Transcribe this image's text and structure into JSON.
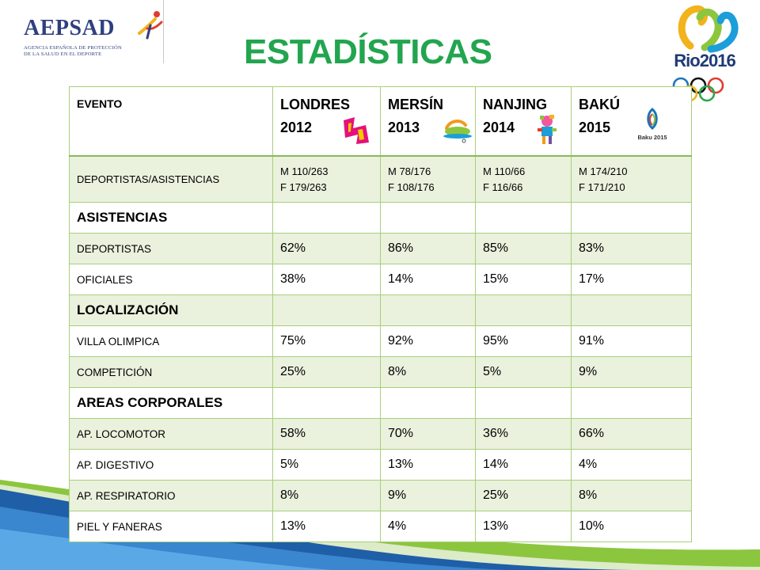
{
  "header": {
    "title": "ESTADÍSTICAS",
    "aepsad_logo_text": "AEPSAD",
    "aepsad_logo_sub": [
      "AGENCIA ESPAÑOLA DE PROTECCIÓN",
      "DE LA SALUD EN EL DEPORTE"
    ],
    "rio_logo_text": "Rio2016"
  },
  "table": {
    "header": {
      "evento": "EVENTO",
      "events": [
        {
          "name": "LONDRES",
          "year": "2012",
          "emblem": "london-2012-emblem"
        },
        {
          "name": "MERSÍN",
          "year": "2013",
          "emblem": "mersin-2013-emblem"
        },
        {
          "name": "NANJING",
          "year": "2014",
          "emblem": "nanjing-2014-mascot"
        },
        {
          "name": "BAKÚ",
          "year": "2015",
          "emblem": "baku-2015-emblem",
          "emblem_text": "Baku 2015"
        }
      ]
    },
    "deportistas_row": {
      "label": "DEPORTISTAS/ASISTENCIAS",
      "values": [
        {
          "m": "M 110/263",
          "f": "F 179/263"
        },
        {
          "m": "M 78/176",
          "f": "F 108/176"
        },
        {
          "m": "M 110/66",
          "f": "F 116/66"
        },
        {
          "m": "M 174/210",
          "f": "F 171/210"
        }
      ]
    },
    "sections": [
      {
        "title": "ASISTENCIAS",
        "rows": [
          {
            "label": "DEPORTISTAS",
            "values": [
              "62%",
              "86%",
              "85%",
              "83%"
            ]
          },
          {
            "label": "OFICIALES",
            "values": [
              "38%",
              "14%",
              "15%",
              "17%"
            ]
          }
        ]
      },
      {
        "title": "LOCALIZACIÓN",
        "rows": [
          {
            "label": "VILLA OLIMPICA",
            "values": [
              "75%",
              "92%",
              "95%",
              "91%"
            ]
          },
          {
            "label": "COMPETICIÓN",
            "values": [
              "25%",
              "8%",
              "5%",
              "9%"
            ]
          }
        ]
      },
      {
        "title": "AREAS CORPORALES",
        "rows": [
          {
            "label": "AP. LOCOMOTOR",
            "values": [
              "58%",
              "70%",
              "36%",
              "66%"
            ]
          },
          {
            "label": "AP. DIGESTIVO",
            "values": [
              "5%",
              "13%",
              "14%",
              "4%"
            ]
          },
          {
            "label": "AP. RESPIRATORIO",
            "values": [
              "8%",
              "9%",
              "25%",
              "8%"
            ]
          },
          {
            "label": "PIEL Y FANERAS",
            "values": [
              "13%",
              "4%",
              "13%",
              "10%"
            ]
          }
        ]
      }
    ]
  },
  "colors": {
    "title_green": "#22a54f",
    "table_border": "#a9cf7b",
    "zebra": "#eaf1dd",
    "wave_blue": "#1f5fa8",
    "wave_green": "#8cc63f",
    "aepsad_blue": "#2f3f7f"
  }
}
